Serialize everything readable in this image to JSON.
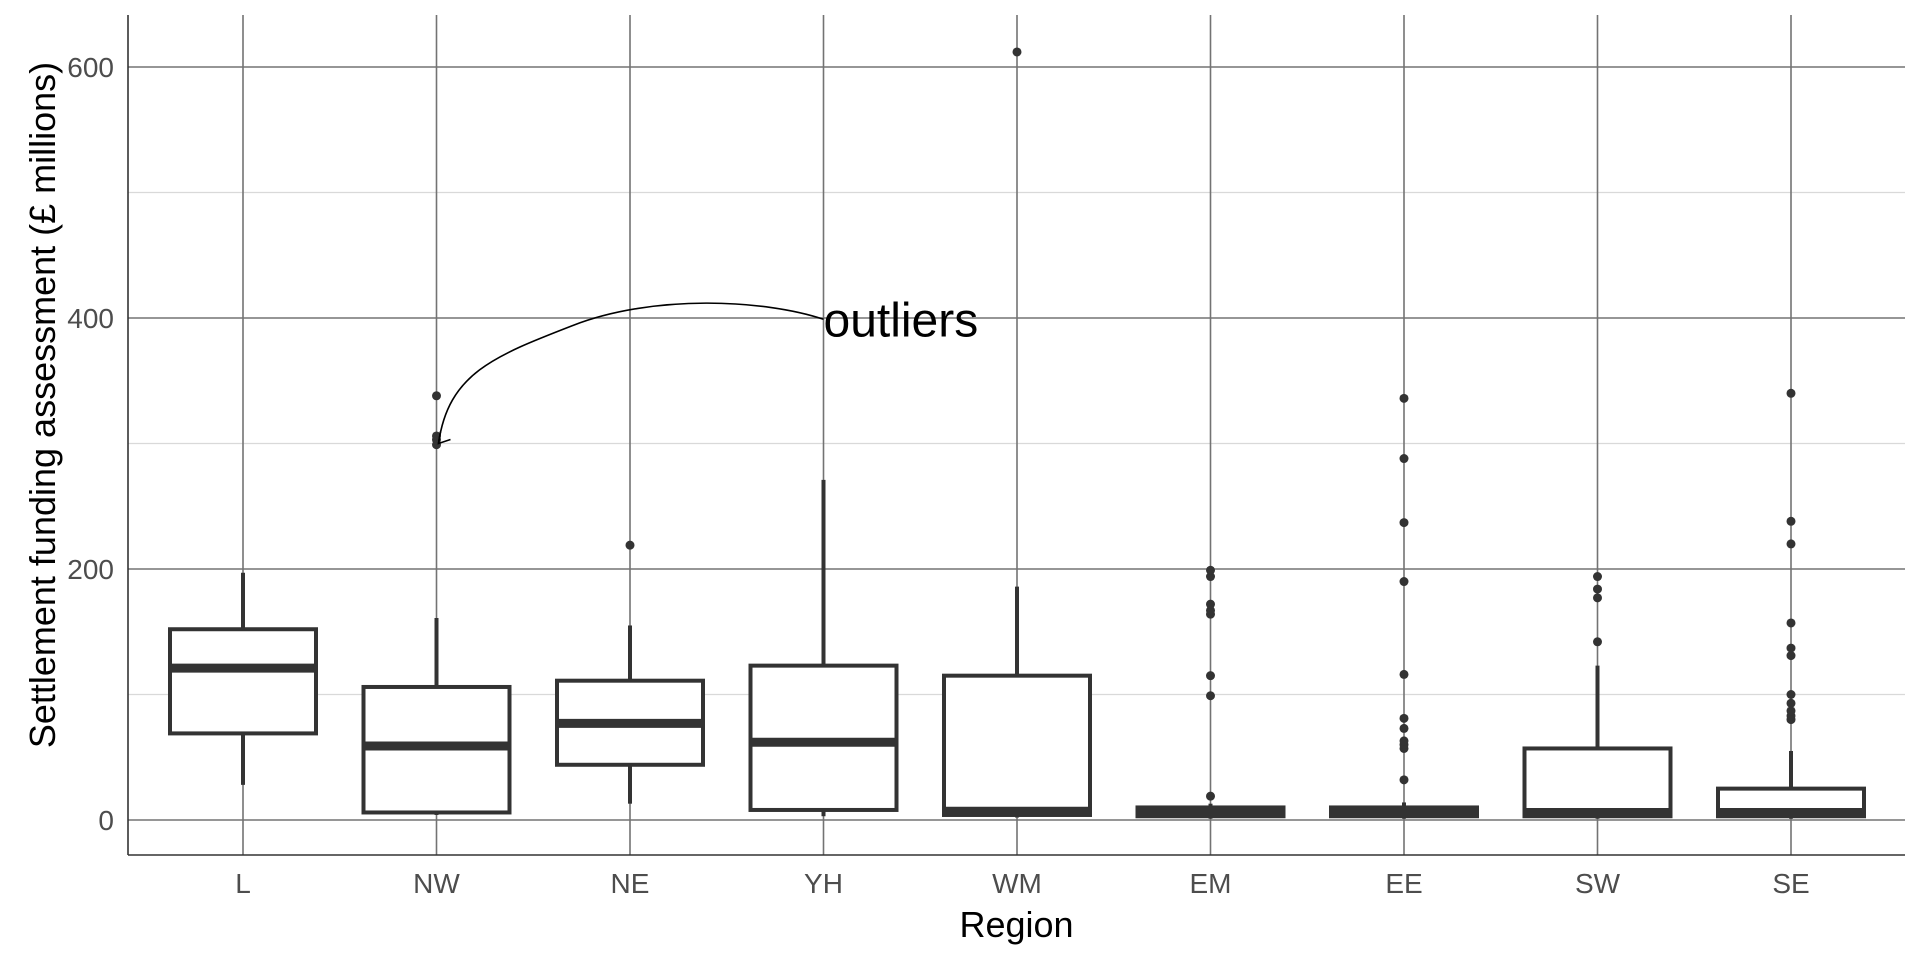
{
  "chart_data": {
    "type": "boxplot",
    "title": "",
    "xlabel": "Region",
    "ylabel": "Settlement funding assessment (£ millions)",
    "ylim": [
      -28,
      643
    ],
    "yticks": [
      0,
      200,
      400,
      600
    ],
    "grid": true,
    "categories": [
      "L",
      "NW",
      "NE",
      "YH",
      "WM",
      "EM",
      "EE",
      "SW",
      "SE"
    ],
    "boxes": [
      {
        "category": "L",
        "whisker_low": 28,
        "q1": 69,
        "median": 121,
        "q3": 152,
        "whisker_high": 197,
        "outliers": []
      },
      {
        "category": "NW",
        "whisker_low": 4,
        "q1": 6,
        "median": 59,
        "q3": 106,
        "whisker_high": 161,
        "outliers": [
          299,
          303,
          306,
          338
        ]
      },
      {
        "category": "NE",
        "whisker_low": 13,
        "q1": 44,
        "median": 77,
        "q3": 111,
        "whisker_high": 155,
        "outliers": [
          219
        ]
      },
      {
        "category": "YH",
        "whisker_low": 3,
        "q1": 8,
        "median": 62,
        "q3": 123,
        "whisker_high": 271,
        "outliers": []
      },
      {
        "category": "WM",
        "whisker_low": 2,
        "q1": 4,
        "median": 7,
        "q3": 115,
        "whisker_high": 186,
        "outliers": [
          612
        ]
      },
      {
        "category": "EM",
        "whisker_low": 1,
        "q1": 3,
        "median": 6,
        "q3": 10,
        "whisker_high": 13,
        "outliers": [
          19,
          99,
          115,
          164,
          167,
          172,
          194,
          199
        ]
      },
      {
        "category": "EE",
        "whisker_low": 1,
        "q1": 3,
        "median": 6,
        "q3": 10,
        "whisker_high": 14,
        "outliers": [
          32,
          57,
          60,
          63,
          73,
          81,
          116,
          190,
          237,
          288,
          336
        ]
      },
      {
        "category": "SW",
        "whisker_low": 1,
        "q1": 3,
        "median": 6,
        "q3": 57,
        "whisker_high": 123,
        "outliers": [
          142,
          177,
          184,
          194
        ]
      },
      {
        "category": "SE",
        "whisker_low": 1,
        "q1": 3,
        "median": 6,
        "q3": 25,
        "whisker_high": 55,
        "outliers": [
          80,
          83,
          87,
          93,
          100,
          131,
          137,
          157,
          220,
          238,
          340
        ]
      }
    ],
    "annotations": [
      {
        "text": "outliers",
        "x": "YH",
        "y": 399,
        "arrow_to": {
          "x": "NW",
          "y": 300
        }
      }
    ]
  }
}
